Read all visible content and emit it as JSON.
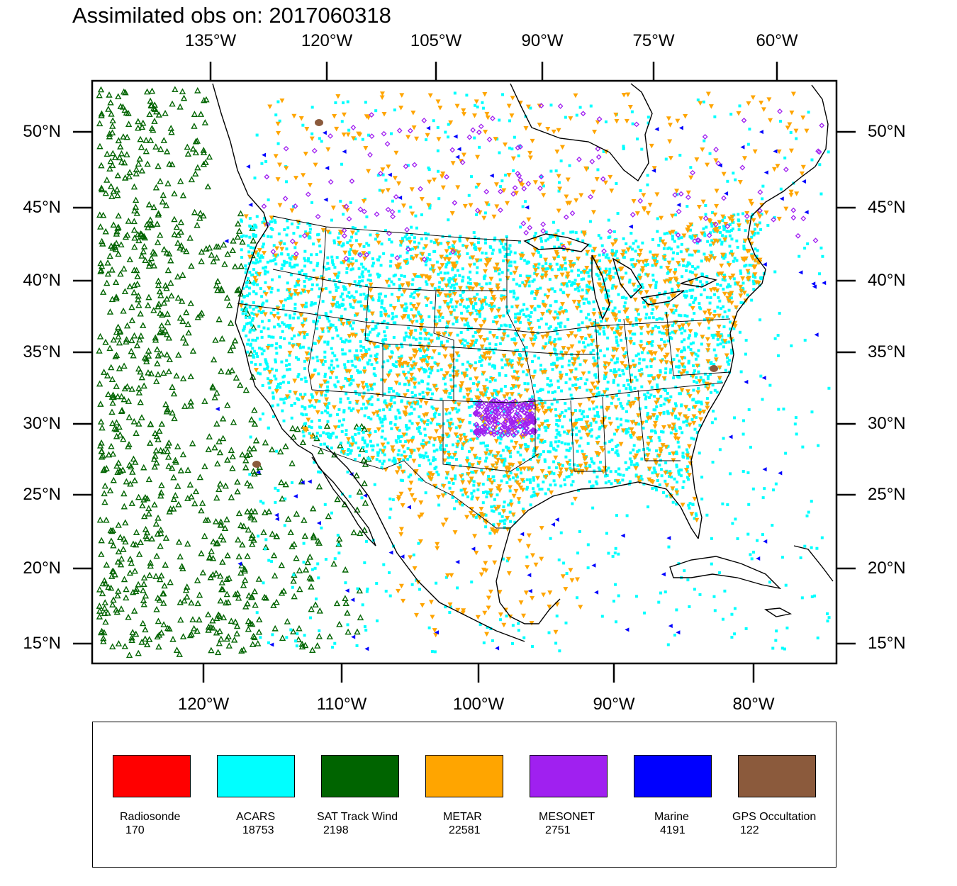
{
  "title": "Assimilated obs on: 2017060318",
  "top_axis_labels": [
    "135°W",
    "120°W",
    "105°W",
    "90°W",
    "75°W",
    "60°W"
  ],
  "bottom_axis_labels": [
    "120°W",
    "110°W",
    "100°W",
    "90°W",
    "80°W"
  ],
  "left_axis_labels": [
    "50°N",
    "45°N",
    "40°N",
    "35°N",
    "30°N",
    "25°N",
    "20°N",
    "15°N"
  ],
  "right_axis_labels": [
    "50°N",
    "45°N",
    "40°N",
    "35°N",
    "30°N",
    "25°N",
    "20°N",
    "15°N"
  ],
  "legend": [
    {
      "name": "Radiosonde",
      "count": "170",
      "color": "#ff0000"
    },
    {
      "name": "ACARS",
      "count": "18753",
      "color": "#00ffff"
    },
    {
      "name": "SAT Track Wind",
      "count": "2198",
      "color": "#006400"
    },
    {
      "name": "METAR",
      "count": "22581",
      "color": "#ffa500"
    },
    {
      "name": "MESONET",
      "count": "2751",
      "color": "#a020f0"
    },
    {
      "name": "Marine",
      "count": "4191",
      "color": "#0000ff"
    },
    {
      "name": "GPS Occultation",
      "count": "122",
      "color": "#8b5a3c"
    }
  ]
}
